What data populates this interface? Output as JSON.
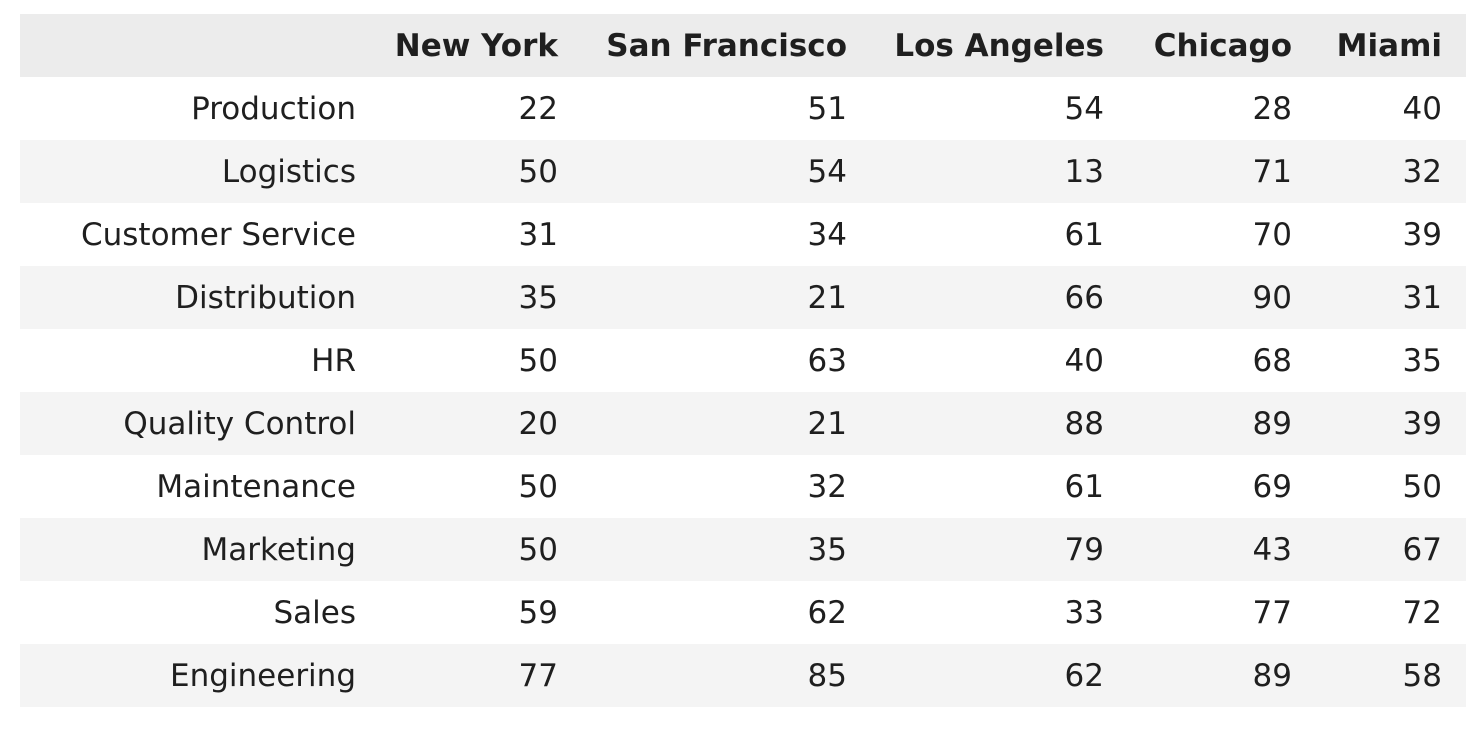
{
  "chart_data": {
    "type": "table",
    "columns": [
      "",
      "New York",
      "San Francisco",
      "Los Angeles",
      "Chicago",
      "Miami"
    ],
    "rows": [
      {
        "label": "Production",
        "values": [
          22,
          51,
          54,
          28,
          40
        ]
      },
      {
        "label": "Logistics",
        "values": [
          50,
          54,
          13,
          71,
          32
        ]
      },
      {
        "label": "Customer Service",
        "values": [
          31,
          34,
          61,
          70,
          39
        ]
      },
      {
        "label": "Distribution",
        "values": [
          35,
          21,
          66,
          90,
          31
        ]
      },
      {
        "label": "HR",
        "values": [
          50,
          63,
          40,
          68,
          35
        ]
      },
      {
        "label": "Quality Control",
        "values": [
          20,
          21,
          88,
          89,
          39
        ]
      },
      {
        "label": "Maintenance",
        "values": [
          50,
          32,
          61,
          69,
          50
        ]
      },
      {
        "label": "Marketing",
        "values": [
          50,
          35,
          79,
          43,
          67
        ]
      },
      {
        "label": "Sales",
        "values": [
          59,
          62,
          33,
          77,
          72
        ]
      },
      {
        "label": "Engineering",
        "values": [
          77,
          85,
          62,
          89,
          58
        ]
      }
    ]
  }
}
